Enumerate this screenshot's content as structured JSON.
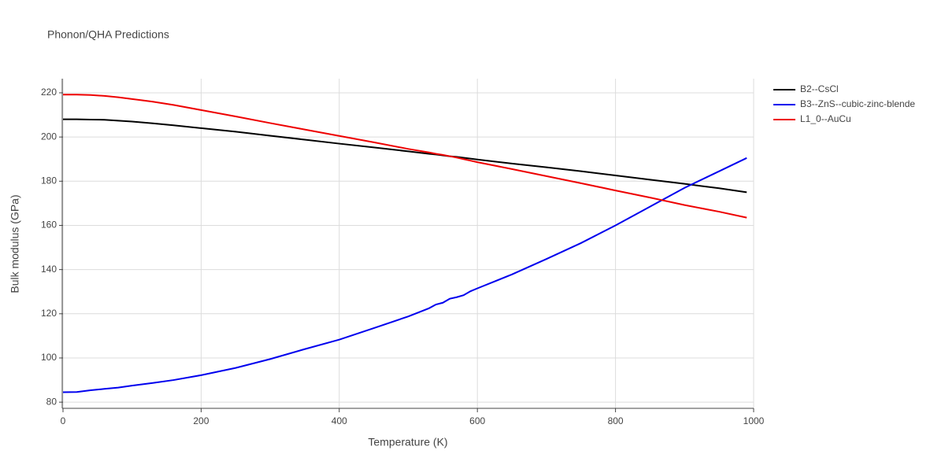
{
  "chart_data": {
    "type": "line",
    "title": "Phonon/QHA Predictions",
    "x_label": "Temperature (K)",
    "y_label": "Bulk modulus (GPa)",
    "x": [
      0,
      20,
      40,
      60,
      80,
      100,
      130,
      160,
      200,
      250,
      300,
      350,
      400,
      450,
      500,
      530,
      540,
      550,
      560,
      570,
      580,
      590,
      600,
      650,
      700,
      750,
      800,
      850,
      900,
      950,
      990
    ],
    "series": [
      {
        "name": "B2--CsCl",
        "color": "#000000",
        "values": [
          208,
          208,
          207.9,
          207.8,
          207.4,
          207,
          206.2,
          205.3,
          204,
          202.4,
          200.6,
          198.8,
          197,
          195.3,
          193.5,
          192.4,
          192.1,
          191.7,
          191.3,
          191,
          190.6,
          190.2,
          189.8,
          188,
          186.3,
          184.5,
          182.6,
          180.7,
          178.8,
          176.8,
          175
        ]
      },
      {
        "name": "B3--ZnS--cubic-zinc-blende",
        "color": "#0000ee",
        "values": [
          84.5,
          84.6,
          85.4,
          86,
          86.6,
          87.5,
          88.7,
          90,
          92.2,
          95.5,
          99.5,
          104,
          108.3,
          113.5,
          118.8,
          122.5,
          124.2,
          125,
          126.8,
          127.5,
          128.4,
          130.2,
          131.5,
          137.8,
          144.8,
          152,
          160,
          168.5,
          177,
          184.5,
          190.5
        ]
      },
      {
        "name": "L1_0--AuCu",
        "color": "#ee0000",
        "values": [
          219.2,
          219.2,
          219,
          218.6,
          218,
          217.2,
          216,
          214.5,
          212.2,
          209.3,
          206.3,
          203.4,
          200.5,
          197.6,
          194.6,
          193,
          192.4,
          191.9,
          191.3,
          190.7,
          190,
          189.3,
          188.6,
          185.5,
          182.3,
          179.1,
          175.8,
          172.6,
          169.2,
          166.2,
          163.5
        ]
      }
    ],
    "xlim": [
      0,
      1000
    ],
    "xticks": [
      0,
      200,
      400,
      600,
      800,
      1000
    ],
    "ylim": [
      77.2,
      226.4
    ],
    "yticks": [
      80,
      100,
      120,
      140,
      160,
      180,
      200,
      220
    ],
    "grid": true,
    "legend": "right"
  }
}
